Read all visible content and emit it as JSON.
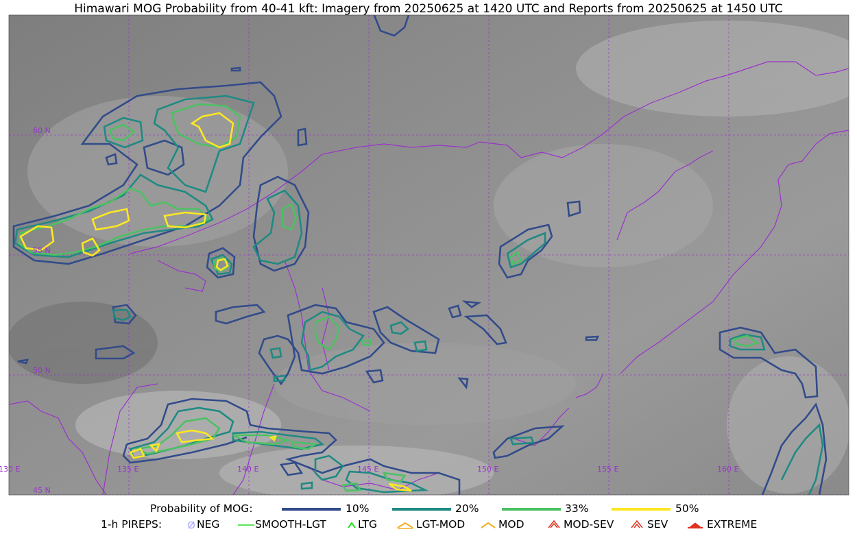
{
  "title": "Himawari MOG Probability from 40-41 kft: Imagery from 20250625 at 1420 UTC and Reports from 20250625 at 1450 UTC",
  "latitude_labels": [
    "60 N",
    "55 N",
    "50 N",
    "45 N"
  ],
  "longitude_labels": [
    "130 E",
    "135 E",
    "140 E",
    "145 E",
    "150 E",
    "155 E",
    "160 E"
  ],
  "colors": {
    "grid": "#9933cc",
    "coast": "#9933cc",
    "p10": "#324b8a",
    "p20": "#1f8a82",
    "p33": "#4cc163",
    "p50": "#fde724"
  },
  "legend": {
    "probability_label": "Probability of MOG:",
    "levels": [
      "10%",
      "20%",
      "33%",
      "50%"
    ],
    "pireps_label": "1-h PIREPS:",
    "pireps": [
      "NEG",
      "SMOOTH-LGT",
      "LTG",
      "LGT-MOD",
      "MOD",
      "MOD-SEV",
      "SEV",
      "EXTREME"
    ]
  }
}
